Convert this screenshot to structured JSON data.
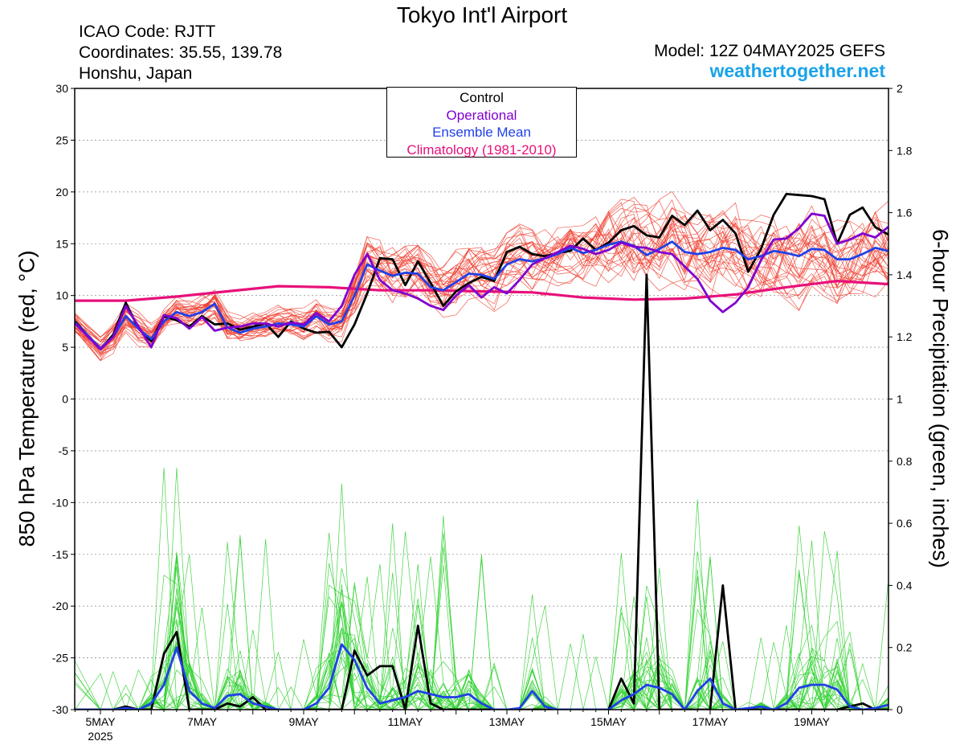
{
  "header": {
    "title": "Tokyo Int'l Airport",
    "icao": "ICAO Code: RJTT",
    "coordinates": "Coordinates: 35.55, 139.78",
    "region": "Honshu, Japan",
    "model": "Model: 12Z 04MAY2025 GEFS",
    "site": "weathertogether.net"
  },
  "colors": {
    "control": "#000000",
    "operational": "#8000d0",
    "ensemble_mean": "#2040e8",
    "climatology": "#e8107a",
    "members_temp": "#f04030",
    "members_precip": "#30d030",
    "site_link": "#1aa3e8"
  },
  "chart_data": {
    "type": "line",
    "ylabel": "850 hPa Temperature (red, °C)",
    "y2label": "6-hour Precipitation (green, inches)",
    "ylim": [
      -30,
      30
    ],
    "y2lim": [
      0,
      2
    ],
    "yticks": [
      30,
      25,
      20,
      15,
      10,
      5,
      0,
      -5,
      -10,
      -15,
      -20,
      -25,
      -30
    ],
    "y2ticks": [
      2,
      1.8,
      1.6,
      1.4,
      1.2,
      1,
      0.8,
      0.6,
      0.4,
      0.2,
      0
    ],
    "xlim": [
      0,
      16.0
    ],
    "x_unit": "days from 00Z 05MAY2025",
    "xticks": [
      {
        "x": 0,
        "label": "5MAY",
        "sublabel": "2025"
      },
      {
        "x": 2,
        "label": "7MAY"
      },
      {
        "x": 4,
        "label": "9MAY"
      },
      {
        "x": 6,
        "label": "11MAY"
      },
      {
        "x": 8,
        "label": "13MAY"
      },
      {
        "x": 10,
        "label": "15MAY"
      },
      {
        "x": 12,
        "label": "17MAY"
      },
      {
        "x": 14,
        "label": "19MAY"
      }
    ],
    "grid": true,
    "legend": {
      "placement": "top-center",
      "entries": [
        {
          "name": "Control",
          "color": "#000000"
        },
        {
          "name": "Operational",
          "color": "#8000d0"
        },
        {
          "name": "Ensemble Mean",
          "color": "#2040e8"
        },
        {
          "name": "Climatology (1981-2010)",
          "color": "#e8107a"
        }
      ]
    },
    "temp_series": [
      {
        "name": "Control",
        "color": "#000000",
        "width": 2.8,
        "x": [
          -0.5,
          0,
          0.25,
          0.5,
          0.75,
          1,
          1.25,
          1.5,
          1.75,
          2,
          2.25,
          2.5,
          2.75,
          3,
          3.25,
          3.5,
          3.75,
          4,
          4.25,
          4.5,
          4.75,
          5,
          5.25,
          5.5,
          5.75,
          6,
          6.25,
          6.5,
          6.75,
          7,
          7.25,
          7.5,
          7.75,
          8,
          8.25,
          8.5,
          8.75,
          9,
          9.25,
          9.5,
          9.75,
          10,
          10.25,
          10.5,
          10.75,
          11,
          11.25,
          11.5,
          11.75,
          12,
          12.25,
          12.5,
          12.75,
          13,
          13.25,
          13.5,
          13.75,
          14,
          14.25,
          14.5,
          14.75,
          15,
          15.25,
          15.5,
          15.75
        ],
        "y": [
          7.5,
          4.8,
          6.2,
          9.3,
          6.8,
          5.6,
          8.0,
          7.6,
          7.0,
          8.0,
          7.2,
          7.3,
          6.7,
          7.0,
          7.3,
          6.0,
          7.5,
          6.8,
          6.4,
          6.5,
          5.0,
          7.2,
          10.2,
          13.6,
          13.5,
          11.0,
          13.3,
          11.2,
          9.0,
          10.4,
          11.2,
          11.8,
          11.4,
          14.2,
          14.7,
          14.0,
          13.8,
          14.1,
          14.3,
          15.5,
          14.4,
          15.1,
          16.3,
          16.7,
          15.8,
          15.6,
          17.7,
          16.8,
          18.2,
          16.3,
          17.3,
          16.0,
          12.3,
          14.5,
          17.8,
          19.8,
          19.7,
          19.6,
          19.3,
          15.0,
          17.8,
          18.5,
          16.6,
          15.9,
          17.5
        ]
      },
      {
        "name": "Operational",
        "color": "#8000d0",
        "width": 2.8,
        "x": [
          -0.5,
          0,
          0.25,
          0.5,
          0.75,
          1,
          1.25,
          1.5,
          1.75,
          2,
          2.25,
          2.5,
          2.75,
          3,
          3.25,
          3.5,
          3.75,
          4,
          4.25,
          4.5,
          4.75,
          5,
          5.25,
          5.5,
          5.75,
          6,
          6.25,
          6.5,
          6.75,
          7,
          7.25,
          7.5,
          7.75,
          8,
          8.25,
          8.5,
          8.75,
          9,
          9.25,
          9.5,
          9.75,
          10,
          10.25,
          10.5,
          10.75,
          11,
          11.25,
          11.5,
          11.75,
          12,
          12.25,
          12.5,
          12.75,
          13,
          13.25,
          13.5,
          13.75,
          14,
          14.25,
          14.5,
          14.75,
          15,
          15.25,
          15.5,
          15.75
        ],
        "y": [
          7.3,
          4.8,
          6.0,
          9.0,
          7.0,
          5.0,
          8.1,
          7.8,
          6.8,
          7.9,
          6.6,
          6.9,
          7.0,
          7.3,
          7.3,
          7.0,
          7.4,
          7.2,
          8.3,
          7.5,
          9.0,
          12.0,
          14.0,
          11.5,
          10.5,
          10.2,
          9.7,
          9.0,
          8.6,
          10.0,
          11.0,
          9.8,
          10.8,
          10.2,
          11.5,
          13.0,
          13.6,
          14.2,
          14.8,
          14.5,
          14.0,
          14.4,
          15.1,
          14.7,
          14.6,
          14.2,
          14.0,
          12.8,
          11.6,
          9.5,
          8.4,
          9.3,
          10.8,
          13.4,
          15.4,
          15.5,
          16.5,
          17.9,
          17.7,
          15.0,
          15.4,
          16.0,
          15.6,
          16.6,
          17.0
        ]
      },
      {
        "name": "Ensemble Mean",
        "color": "#2040e8",
        "width": 2.8,
        "x": [
          -0.5,
          0,
          0.25,
          0.5,
          0.75,
          1,
          1.25,
          1.5,
          1.75,
          2,
          2.25,
          2.5,
          2.75,
          3,
          3.25,
          3.5,
          3.75,
          4,
          4.25,
          4.5,
          4.75,
          5,
          5.25,
          5.5,
          5.75,
          6,
          6.25,
          6.5,
          6.75,
          7,
          7.25,
          7.5,
          7.75,
          8,
          8.25,
          8.5,
          8.75,
          9,
          9.25,
          9.5,
          9.75,
          10,
          10.25,
          10.5,
          10.75,
          11,
          11.25,
          11.5,
          11.75,
          12,
          12.25,
          12.5,
          12.75,
          13,
          13.25,
          13.5,
          13.75,
          14,
          14.25,
          14.5,
          14.75,
          15,
          15.25,
          15.5,
          15.75
        ],
        "y": [
          7.4,
          4.9,
          6.0,
          8.0,
          6.8,
          5.8,
          7.5,
          8.4,
          8.0,
          8.4,
          9.2,
          6.9,
          6.4,
          6.8,
          7.0,
          7.3,
          7.2,
          7.0,
          8.0,
          7.2,
          7.5,
          10.0,
          13.0,
          12.4,
          11.9,
          12.2,
          12.1,
          10.8,
          10.5,
          11.3,
          12.1,
          12.0,
          11.6,
          13.0,
          13.5,
          13.3,
          13.6,
          14.0,
          14.6,
          14.1,
          14.4,
          14.9,
          15.2,
          14.8,
          13.9,
          14.5,
          15.2,
          14.2,
          14.0,
          14.2,
          14.6,
          14.4,
          13.5,
          13.8,
          14.3,
          14.1,
          13.8,
          14.5,
          14.4,
          13.5,
          13.5,
          14.0,
          14.6,
          14.3,
          14.8
        ]
      },
      {
        "name": "Climatology (1981-2010)",
        "color": "#e8107a",
        "width": 3.2,
        "x": [
          -0.5,
          0.5,
          1.5,
          2.5,
          3.5,
          4.5,
          5.5,
          6.5,
          7.5,
          8.5,
          9.5,
          10.5,
          11.5,
          12.5,
          13.5,
          14.5,
          15.5,
          15.75
        ],
        "y": [
          9.5,
          9.5,
          9.9,
          10.4,
          10.9,
          10.8,
          10.5,
          10.5,
          10.4,
          10.3,
          9.8,
          9.6,
          9.7,
          10.1,
          10.8,
          11.4,
          11.1,
          11.0
        ]
      }
    ],
    "precip_series": [
      {
        "name": "Control",
        "color": "#000000",
        "width": 2.8,
        "x": [
          -0.5,
          0,
          0.25,
          0.5,
          0.75,
          1,
          1.25,
          1.5,
          1.75,
          2,
          2.25,
          2.5,
          2.75,
          3,
          3.25,
          3.5,
          3.75,
          4,
          4.25,
          4.5,
          4.75,
          5,
          5.25,
          5.5,
          5.75,
          6,
          6.25,
          6.5,
          6.75,
          7,
          7.25,
          7.5,
          7.75,
          8,
          8.25,
          8.5,
          8.75,
          9,
          9.25,
          9.5,
          9.75,
          10,
          10.25,
          10.5,
          10.75,
          11,
          11.25,
          11.5,
          11.75,
          12,
          12.25,
          12.5,
          12.75,
          13,
          13.25,
          13.5,
          13.75,
          14,
          14.25,
          14.5,
          14.75,
          15,
          15.25,
          15.5,
          15.75
        ],
        "y": [
          0,
          0,
          0,
          0.01,
          0,
          0,
          0.18,
          0.25,
          0,
          0,
          0,
          0.02,
          0.01,
          0.04,
          0,
          0,
          0,
          0,
          0,
          0,
          0,
          0.19,
          0.11,
          0.14,
          0.14,
          0,
          0.27,
          0.02,
          0,
          0,
          0,
          0,
          0,
          0,
          0,
          0,
          0,
          0,
          0,
          0,
          0,
          0,
          0.1,
          0.02,
          1.4,
          0,
          0,
          0,
          0,
          0,
          0.4,
          0,
          0,
          0,
          0,
          0,
          0,
          0,
          0,
          0,
          0.01,
          0.02,
          0,
          0,
          0.01
        ]
      },
      {
        "name": "Ensemble Mean",
        "color": "#2040e8",
        "width": 2.8,
        "x": [
          -0.5,
          0,
          0.25,
          0.5,
          0.75,
          1,
          1.25,
          1.5,
          1.75,
          2,
          2.25,
          2.5,
          2.75,
          3,
          3.25,
          3.5,
          3.75,
          4,
          4.25,
          4.5,
          4.75,
          5,
          5.25,
          5.5,
          5.75,
          6,
          6.25,
          6.5,
          6.75,
          7,
          7.25,
          7.5,
          7.75,
          8,
          8.25,
          8.5,
          8.75,
          9,
          9.25,
          9.5,
          9.75,
          10,
          10.25,
          10.5,
          10.75,
          11,
          11.25,
          11.5,
          11.75,
          12,
          12.25,
          12.5,
          12.75,
          13,
          13.25,
          13.5,
          13.75,
          14,
          14.25,
          14.5,
          14.75,
          15,
          15.25,
          15.5,
          15.75
        ],
        "y": [
          0,
          0,
          0,
          0.005,
          0,
          0.02,
          0.08,
          0.2,
          0.06,
          0.02,
          0.005,
          0.045,
          0.05,
          0.02,
          0.01,
          0,
          0,
          0,
          0.02,
          0.07,
          0.21,
          0.16,
          0.07,
          0.02,
          0.03,
          0.04,
          0.06,
          0.05,
          0.04,
          0.04,
          0.05,
          0.02,
          0,
          0,
          0.005,
          0.06,
          0.01,
          0,
          0,
          0,
          0,
          0,
          0.03,
          0.05,
          0.08,
          0.07,
          0.05,
          0,
          0.06,
          0.1,
          0.02,
          0,
          0.005,
          0.01,
          0,
          0.02,
          0.07,
          0.08,
          0.08,
          0.065,
          0.01,
          0,
          0.005,
          0.015,
          0.01
        ]
      }
    ]
  }
}
